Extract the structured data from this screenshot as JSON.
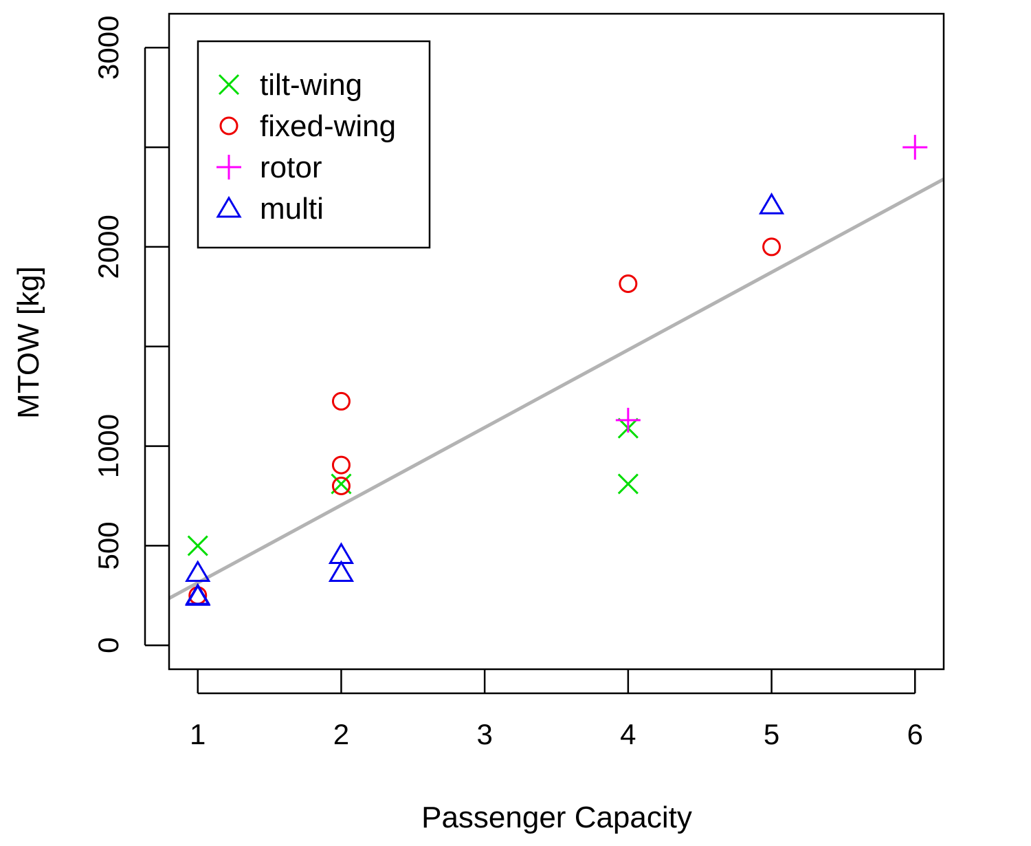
{
  "chart_data": {
    "type": "scatter",
    "title": "",
    "xlabel": "Passenger Capacity",
    "ylabel": "MTOW [kg]",
    "xlim": [
      0.8,
      6.2
    ],
    "ylim": [
      -120,
      3170
    ],
    "x_ticks": [
      1,
      2,
      3,
      4,
      5,
      6
    ],
    "y_ticks": [
      0,
      500,
      1000,
      1500,
      2000,
      2500,
      3000
    ],
    "y_tick_labels": [
      "0",
      "500",
      "1000",
      "",
      "2000",
      "",
      "3000"
    ],
    "grid": false,
    "legend_position": "top-left",
    "series": [
      {
        "name": "tilt-wing",
        "marker": "x",
        "color": "#00dd00",
        "points": [
          [
            1,
            500
          ],
          [
            2,
            810
          ],
          [
            4,
            1090
          ],
          [
            4,
            810
          ]
        ]
      },
      {
        "name": "fixed-wing",
        "marker": "circle",
        "color": "#ee0000",
        "points": [
          [
            1,
            250
          ],
          [
            2,
            1225
          ],
          [
            2,
            905
          ],
          [
            2,
            800
          ],
          [
            4,
            1815
          ],
          [
            5,
            2000
          ]
        ]
      },
      {
        "name": "rotor",
        "marker": "plus",
        "color": "#ff00ff",
        "points": [
          [
            4,
            1130
          ],
          [
            6,
            2500
          ]
        ]
      },
      {
        "name": "multi",
        "marker": "triangle",
        "color": "#0000ee",
        "points": [
          [
            1,
            365
          ],
          [
            1,
            250
          ],
          [
            1,
            245
          ],
          [
            2,
            455
          ],
          [
            2,
            365
          ],
          [
            5,
            2210
          ]
        ]
      }
    ],
    "trendline": {
      "color": "#b3b3b3",
      "x": [
        0.8,
        6.2
      ],
      "y": [
        236,
        2340
      ]
    }
  }
}
